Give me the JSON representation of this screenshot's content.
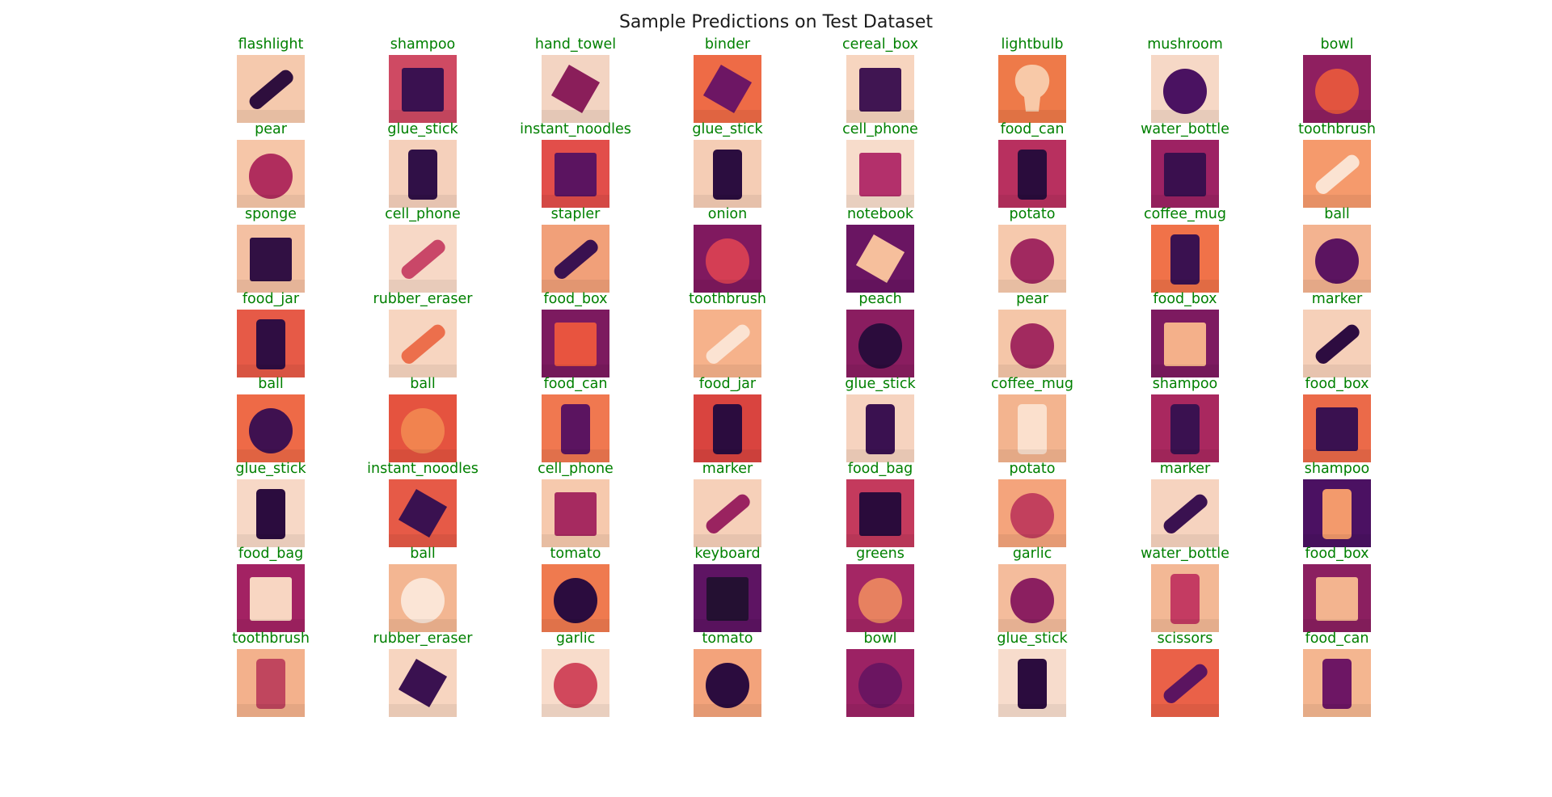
{
  "figure": {
    "title": "Sample Predictions on Test Dataset",
    "label_color": "#008000",
    "colormap": "magma",
    "rows": 8,
    "columns": 8
  },
  "predictions": [
    {
      "label": "flashlight",
      "bg": "#f5c9ad",
      "fg": "#2e0e3d",
      "shape": "bar"
    },
    {
      "label": "shampoo",
      "bg": "#cf4a63",
      "fg": "#3a1150",
      "shape": "box"
    },
    {
      "label": "hand_towel",
      "bg": "#f3d4c2",
      "fg": "#8a1e5a",
      "shape": "diamond"
    },
    {
      "label": "binder",
      "bg": "#ee6b46",
      "fg": "#6d1664",
      "shape": "diamond"
    },
    {
      "label": "cereal_box",
      "bg": "#f7d5bf",
      "fg": "#401552",
      "shape": "box"
    },
    {
      "label": "lightbulb",
      "bg": "#ee7a49",
      "fg": "#f8c9a8",
      "shape": "bulb"
    },
    {
      "label": "mushroom",
      "bg": "#f6d8c6",
      "fg": "#4a1261",
      "shape": "round"
    },
    {
      "label": "bowl",
      "bg": "#8f1f60",
      "fg": "#e2543f",
      "shape": "round"
    },
    {
      "label": "pear",
      "bg": "#f6c6a8",
      "fg": "#b02d5d",
      "shape": "round"
    },
    {
      "label": "glue_stick",
      "bg": "#f5d0bb",
      "fg": "#301047",
      "shape": "tall"
    },
    {
      "label": "instant_noodles",
      "bg": "#e24e4a",
      "fg": "#5b1460",
      "shape": "box"
    },
    {
      "label": "glue_stick",
      "bg": "#f5cdb5",
      "fg": "#2b0d3f",
      "shape": "tall"
    },
    {
      "label": "cell_phone",
      "bg": "#f7dccb",
      "fg": "#b3306b",
      "shape": "box"
    },
    {
      "label": "food_can",
      "bg": "#b8305f",
      "fg": "#2a0c3c",
      "shape": "tall"
    },
    {
      "label": "water_bottle",
      "bg": "#9d2263",
      "fg": "#3a0f4e",
      "shape": "box"
    },
    {
      "label": "toothbrush",
      "bg": "#f59a6c",
      "fg": "#fbe3d2",
      "shape": "bar"
    },
    {
      "label": "sponge",
      "bg": "#f4c0a2",
      "fg": "#311043",
      "shape": "box"
    },
    {
      "label": "cell_phone",
      "bg": "#f7d8c6",
      "fg": "#c94768",
      "shape": "bar"
    },
    {
      "label": "stapler",
      "bg": "#f1a079",
      "fg": "#3a1150",
      "shape": "bar"
    },
    {
      "label": "onion",
      "bg": "#80195f",
      "fg": "#d43e54",
      "shape": "round"
    },
    {
      "label": "notebook",
      "bg": "#6a1562",
      "fg": "#f6bf9c",
      "shape": "diamond"
    },
    {
      "label": "potato",
      "bg": "#f6c9ad",
      "fg": "#a12960",
      "shape": "round"
    },
    {
      "label": "coffee_mug",
      "bg": "#f07249",
      "fg": "#3a1150",
      "shape": "tall"
    },
    {
      "label": "ball",
      "bg": "#f3b390",
      "fg": "#5b1460",
      "shape": "round"
    },
    {
      "label": "food_jar",
      "bg": "#e65a47",
      "fg": "#2f0d42",
      "shape": "tall"
    },
    {
      "label": "rubber_eraser",
      "bg": "#f7d5c0",
      "fg": "#ec6f4c",
      "shape": "bar"
    },
    {
      "label": "food_box",
      "bg": "#7c1a5f",
      "fg": "#e8543f",
      "shape": "box"
    },
    {
      "label": "toothbrush",
      "bg": "#f6b28b",
      "fg": "#fbe3d2",
      "shape": "bar"
    },
    {
      "label": "peach",
      "bg": "#8a1d60",
      "fg": "#2b0c3c",
      "shape": "round"
    },
    {
      "label": "pear",
      "bg": "#f5c6a8",
      "fg": "#a22a5f",
      "shape": "round"
    },
    {
      "label": "food_box",
      "bg": "#7d1a60",
      "fg": "#f4b08a",
      "shape": "box"
    },
    {
      "label": "marker",
      "bg": "#f6d0b9",
      "fg": "#2d0c40",
      "shape": "bar"
    },
    {
      "label": "ball",
      "bg": "#ee6a47",
      "fg": "#3f1150",
      "shape": "round"
    },
    {
      "label": "ball",
      "bg": "#e5533f",
      "fg": "#f1834f",
      "shape": "round"
    },
    {
      "label": "food_can",
      "bg": "#f07850",
      "fg": "#5b1460",
      "shape": "tall"
    },
    {
      "label": "food_jar",
      "bg": "#d9443f",
      "fg": "#2b0c3e",
      "shape": "tall"
    },
    {
      "label": "glue_stick",
      "bg": "#f6d3bf",
      "fg": "#3a1150",
      "shape": "tall"
    },
    {
      "label": "coffee_mug",
      "bg": "#f3b48f",
      "fg": "#fbe0cd",
      "shape": "tall"
    },
    {
      "label": "shampoo",
      "bg": "#a9285f",
      "fg": "#3a1150",
      "shape": "tall"
    },
    {
      "label": "food_box",
      "bg": "#eb6a49",
      "fg": "#3a1150",
      "shape": "box"
    },
    {
      "label": "glue_stick",
      "bg": "#f7d8c6",
      "fg": "#2b0c3e",
      "shape": "tall"
    },
    {
      "label": "instant_noodles",
      "bg": "#e65a47",
      "fg": "#3a1150",
      "shape": "diamond"
    },
    {
      "label": "cell_phone",
      "bg": "#f6c9ad",
      "fg": "#a62a60",
      "shape": "box"
    },
    {
      "label": "marker",
      "bg": "#f6d0b9",
      "fg": "#9a2360",
      "shape": "bar"
    },
    {
      "label": "food_bag",
      "bg": "#c43a5d",
      "fg": "#2a0b3b",
      "shape": "box"
    },
    {
      "label": "potato",
      "bg": "#f4a47c",
      "fg": "#c2405d",
      "shape": "round"
    },
    {
      "label": "marker",
      "bg": "#f6d3bf",
      "fg": "#3a1150",
      "shape": "bar"
    },
    {
      "label": "shampoo",
      "bg": "#4b1162",
      "fg": "#f39a6c",
      "shape": "tall"
    },
    {
      "label": "food_bag",
      "bg": "#a32263",
      "fg": "#f8d6c2",
      "shape": "box"
    },
    {
      "label": "ball",
      "bg": "#f3b692",
      "fg": "#fbe5d6",
      "shape": "round"
    },
    {
      "label": "tomato",
      "bg": "#ef7a4f",
      "fg": "#2b0c3e",
      "shape": "round"
    },
    {
      "label": "keyboard",
      "bg": "#5e1463",
      "fg": "#241032",
      "shape": "box"
    },
    {
      "label": "greens",
      "bg": "#a42664",
      "fg": "#e78160",
      "shape": "round"
    },
    {
      "label": "garlic",
      "bg": "#f4bc9c",
      "fg": "#8b1f60",
      "shape": "round"
    },
    {
      "label": "water_bottle",
      "bg": "#f3b895",
      "fg": "#c43b62",
      "shape": "tall"
    },
    {
      "label": "food_box",
      "bg": "#8b1f60",
      "fg": "#f3b48f",
      "shape": "box"
    },
    {
      "label": "toothbrush",
      "bg": "#f3b18c",
      "fg": "#c0465e",
      "shape": "tall"
    },
    {
      "label": "rubber_eraser",
      "bg": "#f7d5c0",
      "fg": "#3a1150",
      "shape": "diamond"
    },
    {
      "label": "garlic",
      "bg": "#f8dccb",
      "fg": "#d1485c",
      "shape": "round"
    },
    {
      "label": "tomato",
      "bg": "#f3a37b",
      "fg": "#2b0c3e",
      "shape": "round"
    },
    {
      "label": "bowl",
      "bg": "#9c2264",
      "fg": "#6b1561",
      "shape": "round"
    },
    {
      "label": "glue_stick",
      "bg": "#f7dccc",
      "fg": "#2b0c3e",
      "shape": "tall"
    },
    {
      "label": "scissors",
      "bg": "#ea6148",
      "fg": "#5b1460",
      "shape": "bar"
    },
    {
      "label": "food_can",
      "bg": "#f4b690",
      "fg": "#6d1664",
      "shape": "tall"
    }
  ]
}
